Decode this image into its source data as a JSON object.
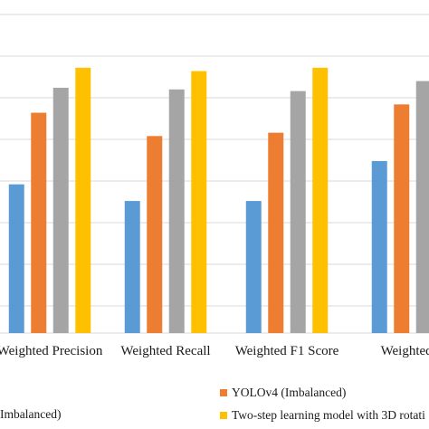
{
  "chart_data": {
    "type": "bar",
    "categories": [
      "Weighted Precision",
      "Weighted Recall",
      "Weighted F1 Score",
      "Weighted A"
    ],
    "series": [
      {
        "name": "",
        "color": "#5b9bd5",
        "values": [
          0.848,
          0.838,
          0.838,
          0.862
        ]
      },
      {
        "name": "YOLOv4 (Imbalanced)",
        "color": "#ed7d31",
        "values": [
          0.891,
          0.877,
          0.879,
          0.896
        ]
      },
      {
        "name": "",
        "color": "#a5a5a5",
        "values": [
          0.906,
          0.905,
          0.904,
          0.91
        ]
      },
      {
        "name": "Two-step learning model with 3D rotati",
        "color": "#ffc000",
        "values": [
          0.918,
          0.916,
          0.918,
          0.925
        ]
      }
    ],
    "ylim": [
      0.75,
      0.95
    ],
    "grid": true,
    "legend_position": "bottom",
    "legend_fragment": "Imbalanced)",
    "gridline_color": "#d9d9d9"
  }
}
